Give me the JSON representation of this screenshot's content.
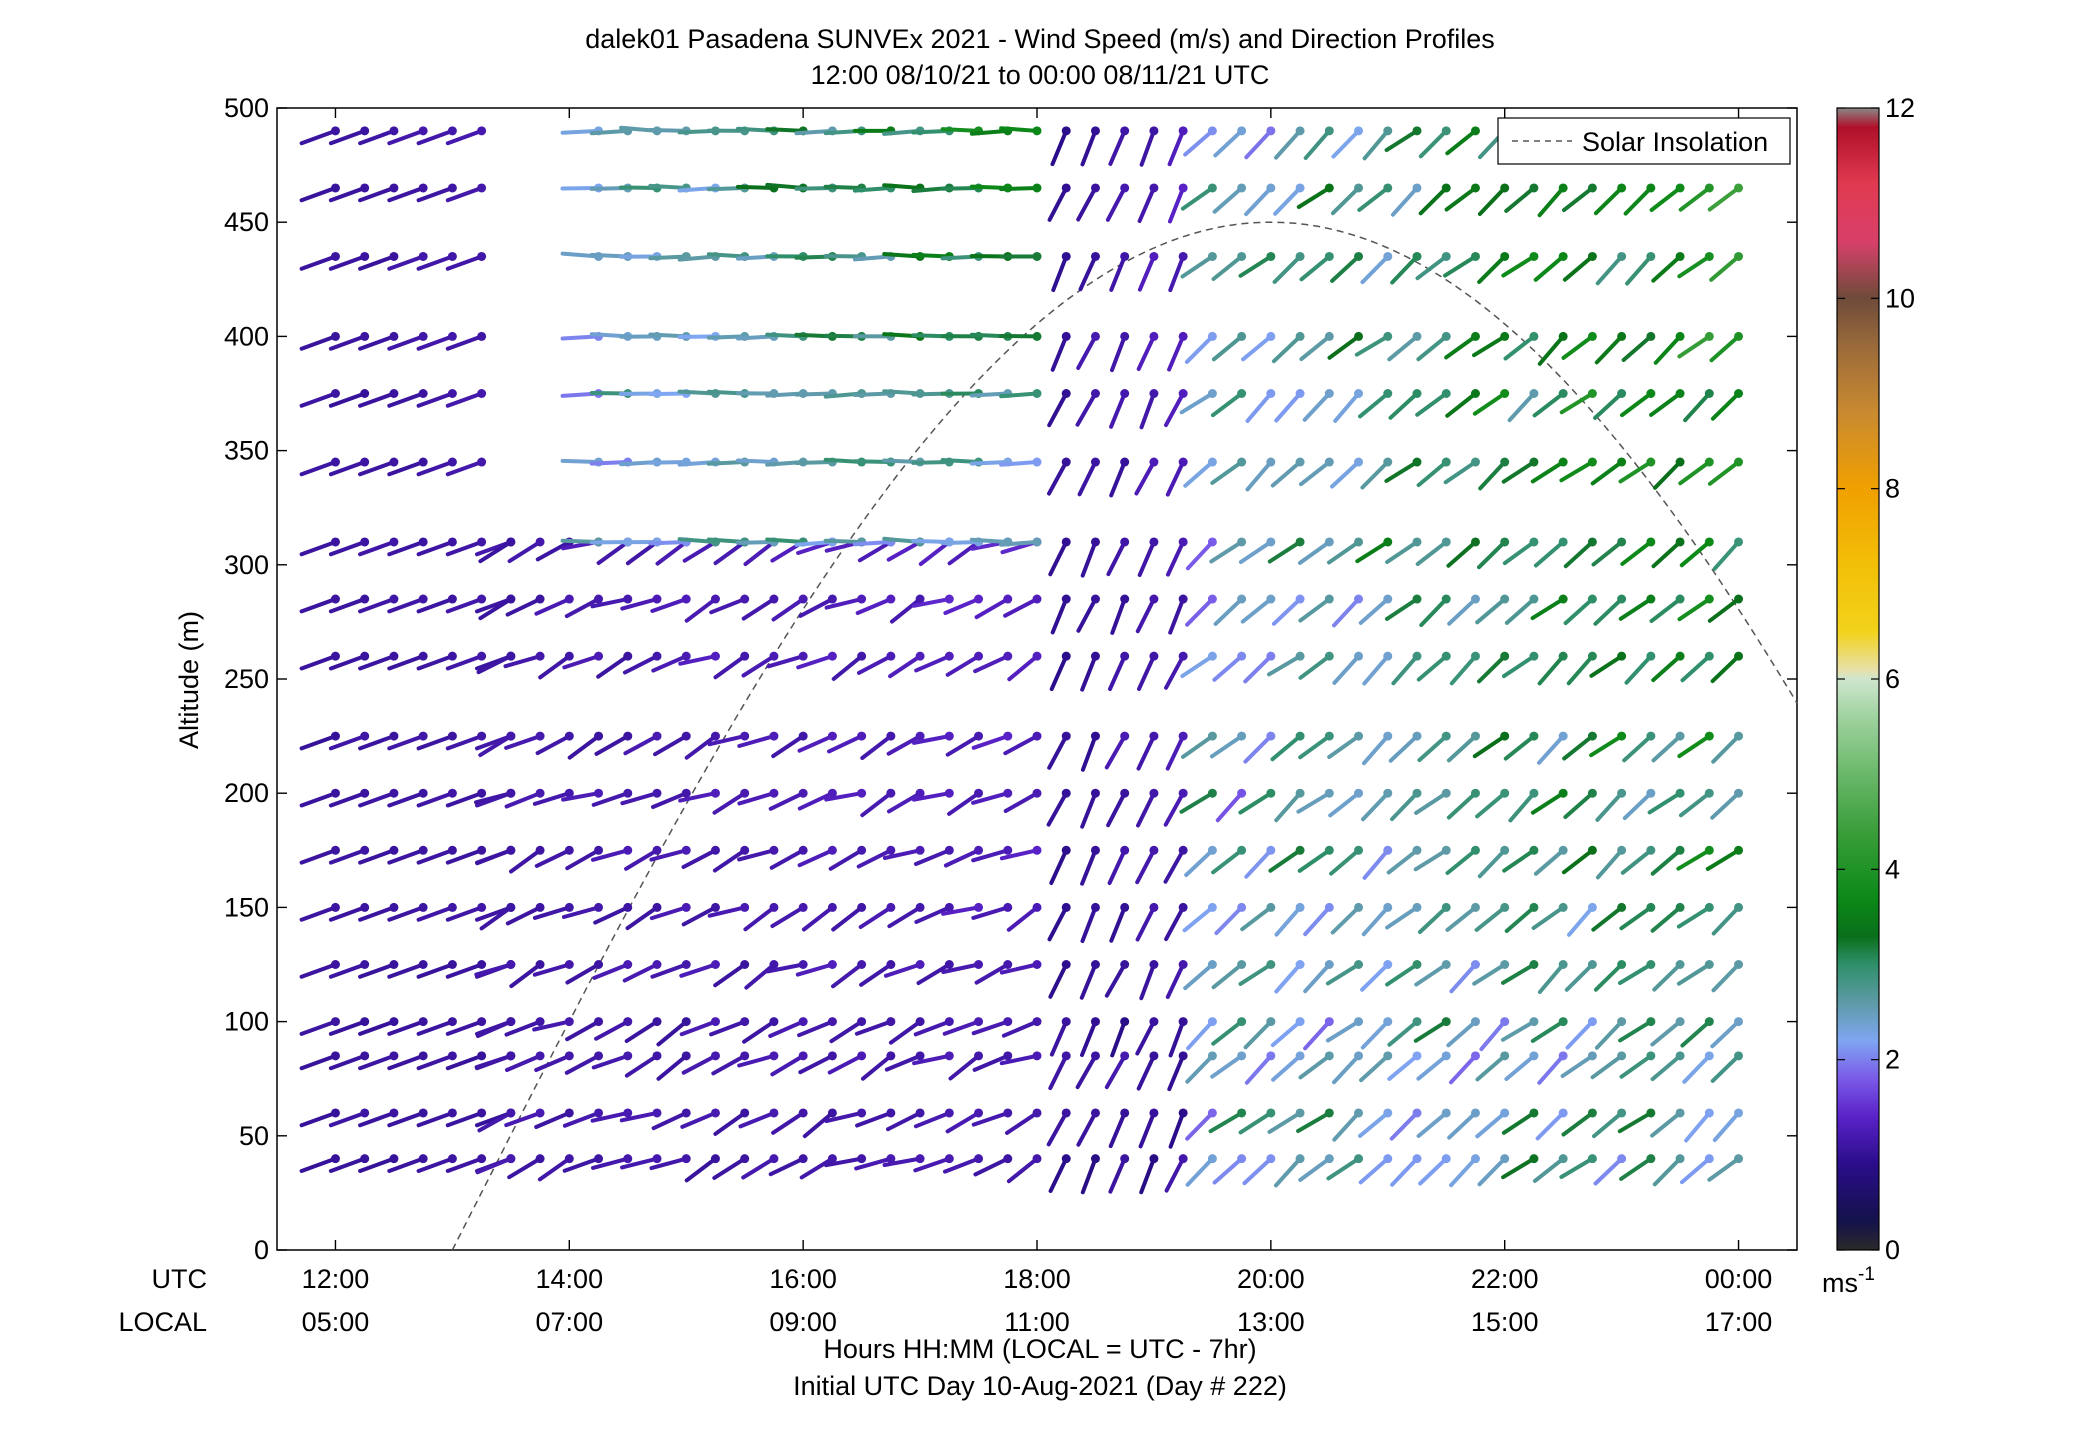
{
  "chart_data": {
    "type": "wind-barb-profile",
    "title": "dalek01 Pasadena SUNVEx 2021 - Wind Speed (m/s) and Direction Profiles",
    "subtitle": "12:00 08/10/21 to 00:00 08/11/21  UTC",
    "ylabel": "Altitude (m)",
    "xlabel": "Hours HH:MM  (LOCAL = UTC - 7hr)",
    "xlabel2": "Initial UTC Day 10-Aug-2021 (Day # 222)",
    "row_label_utc": "UTC",
    "row_label_local": "LOCAL",
    "xlim_hours_utc": [
      11.5,
      24.5
    ],
    "ylim": [
      0,
      500
    ],
    "x_ticks_utc": [
      "12:00",
      "14:00",
      "16:00",
      "18:00",
      "20:00",
      "22:00",
      "00:00"
    ],
    "x_ticks_local": [
      "05:00",
      "07:00",
      "09:00",
      "11:00",
      "13:00",
      "15:00",
      "17:00"
    ],
    "y_ticks": [
      "0",
      "50",
      "100",
      "150",
      "200",
      "250",
      "300",
      "350",
      "400",
      "450",
      "500"
    ],
    "legend": {
      "entries": [
        "Solar Insolation"
      ],
      "placement": "top-right",
      "line_style": "dashed",
      "line_color": "#555555"
    },
    "colorbar": {
      "range": [
        0,
        12
      ],
      "ticks": [
        "0",
        "2",
        "4",
        "6",
        "8",
        "10",
        "12"
      ],
      "unit": "ms",
      "unit_exp": "-1"
    },
    "solar_insolation": {
      "peak_hour_utc": 20.0,
      "peak_altitude": 450,
      "start_hour_utc": 13.0,
      "end_hour_utc": 24.5,
      "end_altitude": 225
    },
    "altitudes": [
      40,
      60,
      85,
      100,
      125,
      150,
      175,
      200,
      225,
      260,
      285,
      310,
      345,
      375,
      400,
      435,
      465,
      490
    ],
    "segments": [
      {
        "name": "early",
        "start_hour_utc": 12.0,
        "end_hour_utc": 13.5,
        "step_hours": 0.25,
        "dir_from": [
          250,
          250
        ],
        "speed": [
          1.0,
          1.2
        ],
        "max_alt": 500,
        "min_alt": 0
      },
      {
        "name": "morning-low",
        "start_hour_utc": 13.5,
        "end_hour_utc": 18.0,
        "step_hours": 0.25,
        "dir_from": [
          230,
          260
        ],
        "speed": [
          1.0,
          1.4
        ],
        "max_alt": 310,
        "min_alt": 0
      },
      {
        "name": "morning-aloft",
        "start_hour_utc": 14.25,
        "end_hour_utc": 18.0,
        "step_hours": 0.25,
        "dir_from": [
          265,
          275
        ],
        "speed": [
          1.8,
          3.8
        ],
        "max_alt": 500,
        "min_alt": 310
      },
      {
        "name": "transition",
        "start_hour_utc": 18.25,
        "end_hour_utc": 19.25,
        "step_hours": 0.25,
        "dir_from": [
          200,
          210
        ],
        "speed": [
          0.8,
          1.4
        ],
        "max_alt": 500,
        "min_alt": 0
      },
      {
        "name": "afternoon",
        "start_hour_utc": 19.5,
        "end_hour_utc": 24.0,
        "step_hours": 0.25,
        "dir_from": [
          220,
          240
        ],
        "speed": [
          1.6,
          4.2
        ],
        "max_alt": 500,
        "min_alt": 0
      }
    ],
    "gaps": [
      {
        "start_hour_utc": 13.5,
        "end_hour_utc": 14.2,
        "min_alt": 315,
        "max_alt": 500
      }
    ]
  },
  "colors": {
    "axes": "#000000",
    "insolation": "#555555",
    "colormap": [
      [
        0.0,
        "#2a2a2a"
      ],
      [
        0.3,
        "#14124a"
      ],
      [
        0.9,
        "#2a0d8a"
      ],
      [
        1.4,
        "#5a22c8"
      ],
      [
        1.8,
        "#7a5ae8"
      ],
      [
        2.2,
        "#7fa6f2"
      ],
      [
        2.6,
        "#5d9aa6"
      ],
      [
        3.0,
        "#2f8f6a"
      ],
      [
        3.3,
        "#0a6f1a"
      ],
      [
        3.7,
        "#0c8a18"
      ],
      [
        4.4,
        "#3a9e3a"
      ],
      [
        5.0,
        "#6ab86a"
      ],
      [
        5.6,
        "#9fd29f"
      ],
      [
        6.0,
        "#cfe6cf"
      ],
      [
        6.1,
        "#e8e0a8"
      ],
      [
        6.5,
        "#f3d21a"
      ],
      [
        7.2,
        "#f2bf08"
      ],
      [
        8.0,
        "#f0a000"
      ],
      [
        8.8,
        "#c98a30"
      ],
      [
        9.5,
        "#9a6a3a"
      ],
      [
        10.0,
        "#6e4b3a"
      ],
      [
        10.6,
        "#d8406a"
      ],
      [
        11.2,
        "#e03a50"
      ],
      [
        11.8,
        "#b0102a"
      ],
      [
        12.0,
        "#888888"
      ]
    ]
  }
}
